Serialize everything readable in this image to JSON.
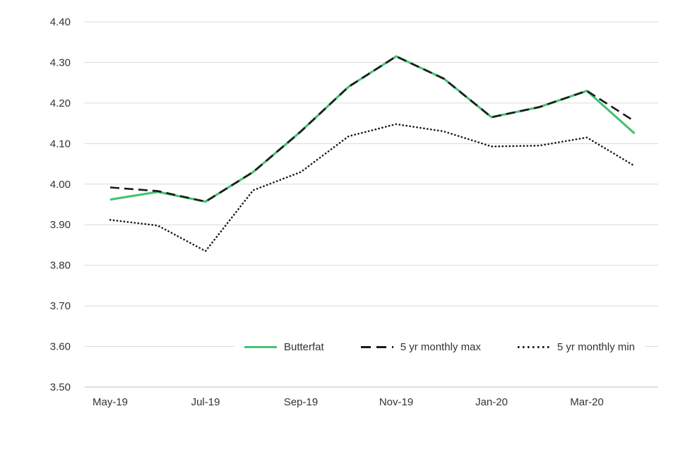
{
  "chart_data": {
    "type": "line",
    "categories": [
      "May-19",
      "Jun-19",
      "Jul-19",
      "Aug-19",
      "Sep-19",
      "Oct-19",
      "Nov-19",
      "Dec-19",
      "Jan-20",
      "Feb-20",
      "Mar-20",
      "Apr-20"
    ],
    "x_ticks": [
      {
        "i": 0,
        "label": "May-19"
      },
      {
        "i": 2,
        "label": "Jul-19"
      },
      {
        "i": 4,
        "label": "Sep-19"
      },
      {
        "i": 6,
        "label": "Nov-19"
      },
      {
        "i": 8,
        "label": "Jan-20"
      },
      {
        "i": 10,
        "label": "Mar-20"
      }
    ],
    "y_ticks": [
      "3.50",
      "3.60",
      "3.70",
      "3.80",
      "3.90",
      "4.00",
      "4.10",
      "4.20",
      "4.30",
      "4.40"
    ],
    "ylim": [
      3.5,
      4.4
    ],
    "ytick_step": 0.1,
    "grid": "horizontal",
    "legend_position": "bottom-inside",
    "series": [
      {
        "name": "Butterfat",
        "style": "solid",
        "color": "#47c275",
        "values": [
          3.962,
          3.981,
          3.957,
          4.03,
          4.13,
          4.24,
          4.315,
          4.26,
          4.165,
          4.19,
          4.23,
          4.125
        ]
      },
      {
        "name": "5 yr monthly max",
        "style": "dashed",
        "color": "#1a1a1a",
        "values": [
          3.992,
          3.983,
          3.957,
          4.03,
          4.13,
          4.24,
          4.315,
          4.26,
          4.165,
          4.19,
          4.23,
          4.155
        ]
      },
      {
        "name": "5 yr monthly min",
        "style": "dotted",
        "color": "#1a1a1a",
        "values": [
          3.912,
          3.898,
          3.835,
          3.985,
          4.03,
          4.118,
          4.148,
          4.13,
          4.093,
          4.095,
          4.115,
          4.045
        ]
      }
    ],
    "colors": {
      "gridline": "#d9d9d9",
      "axis_line": "#bfbfbf",
      "tick_text": "#333333"
    }
  }
}
